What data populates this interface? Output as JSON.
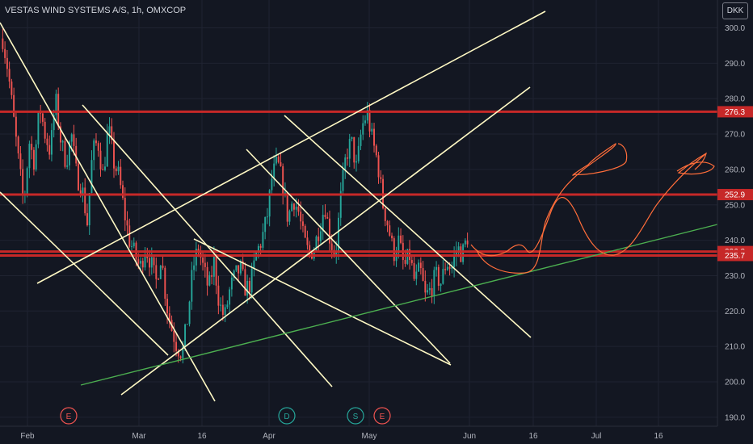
{
  "header": {
    "title": "VESTAS WIND SYSTEMS A/S, 1h, OMXCOP",
    "currency": "DKK"
  },
  "colors": {
    "background": "#131722",
    "up": "#26a69a",
    "down": "#ef5350",
    "level": "#c62828",
    "trendline": "#fff9c4",
    "support": "#4caf50",
    "sketch": "#ff6d3a"
  },
  "chart_data": {
    "type": "candlestick",
    "title": "VESTAS WIND SYSTEMS A/S, 1h, OMXCOP",
    "ylim": [
      187,
      306
    ],
    "y_ticks": [
      190.0,
      200.0,
      210.0,
      220.0,
      230.0,
      240.0,
      250.0,
      260.0,
      270.0,
      280.0,
      290.0,
      300.0
    ],
    "x_ticks": [
      "Feb",
      "Mar",
      "16",
      "Apr",
      "May",
      "Jun",
      "16",
      "Jul",
      "16"
    ],
    "price_trace": [
      297,
      288,
      275,
      262,
      250,
      268,
      262,
      278,
      270,
      265,
      280,
      268,
      262,
      270,
      258,
      255,
      245,
      265,
      268,
      258,
      272,
      262,
      258,
      248,
      240,
      236,
      232,
      238,
      234,
      228,
      236,
      222,
      215,
      210,
      208,
      218,
      232,
      238,
      232,
      226,
      234,
      222,
      218,
      226,
      230,
      232,
      226,
      228,
      236,
      240,
      246,
      258,
      262,
      256,
      246,
      252,
      248,
      240,
      236,
      238,
      244,
      250,
      240,
      236,
      252,
      264,
      268,
      260,
      272,
      276,
      268,
      262,
      250,
      244,
      236,
      240,
      232,
      236,
      228,
      232,
      224,
      226,
      230,
      228,
      234,
      232,
      238,
      236,
      241
    ],
    "horizontal_levels": [
      {
        "price": 276.3,
        "label": "276.3"
      },
      {
        "price": 252.9,
        "label": "252.9"
      },
      {
        "price": 236.8,
        "label": "236.8"
      },
      {
        "price": 235.7,
        "label": "235.7"
      }
    ],
    "events": [
      {
        "label": "E",
        "kind": "earnings"
      },
      {
        "label": "D",
        "kind": "dividend"
      },
      {
        "label": "S",
        "kind": "split"
      },
      {
        "label": "E",
        "kind": "earnings"
      }
    ]
  }
}
